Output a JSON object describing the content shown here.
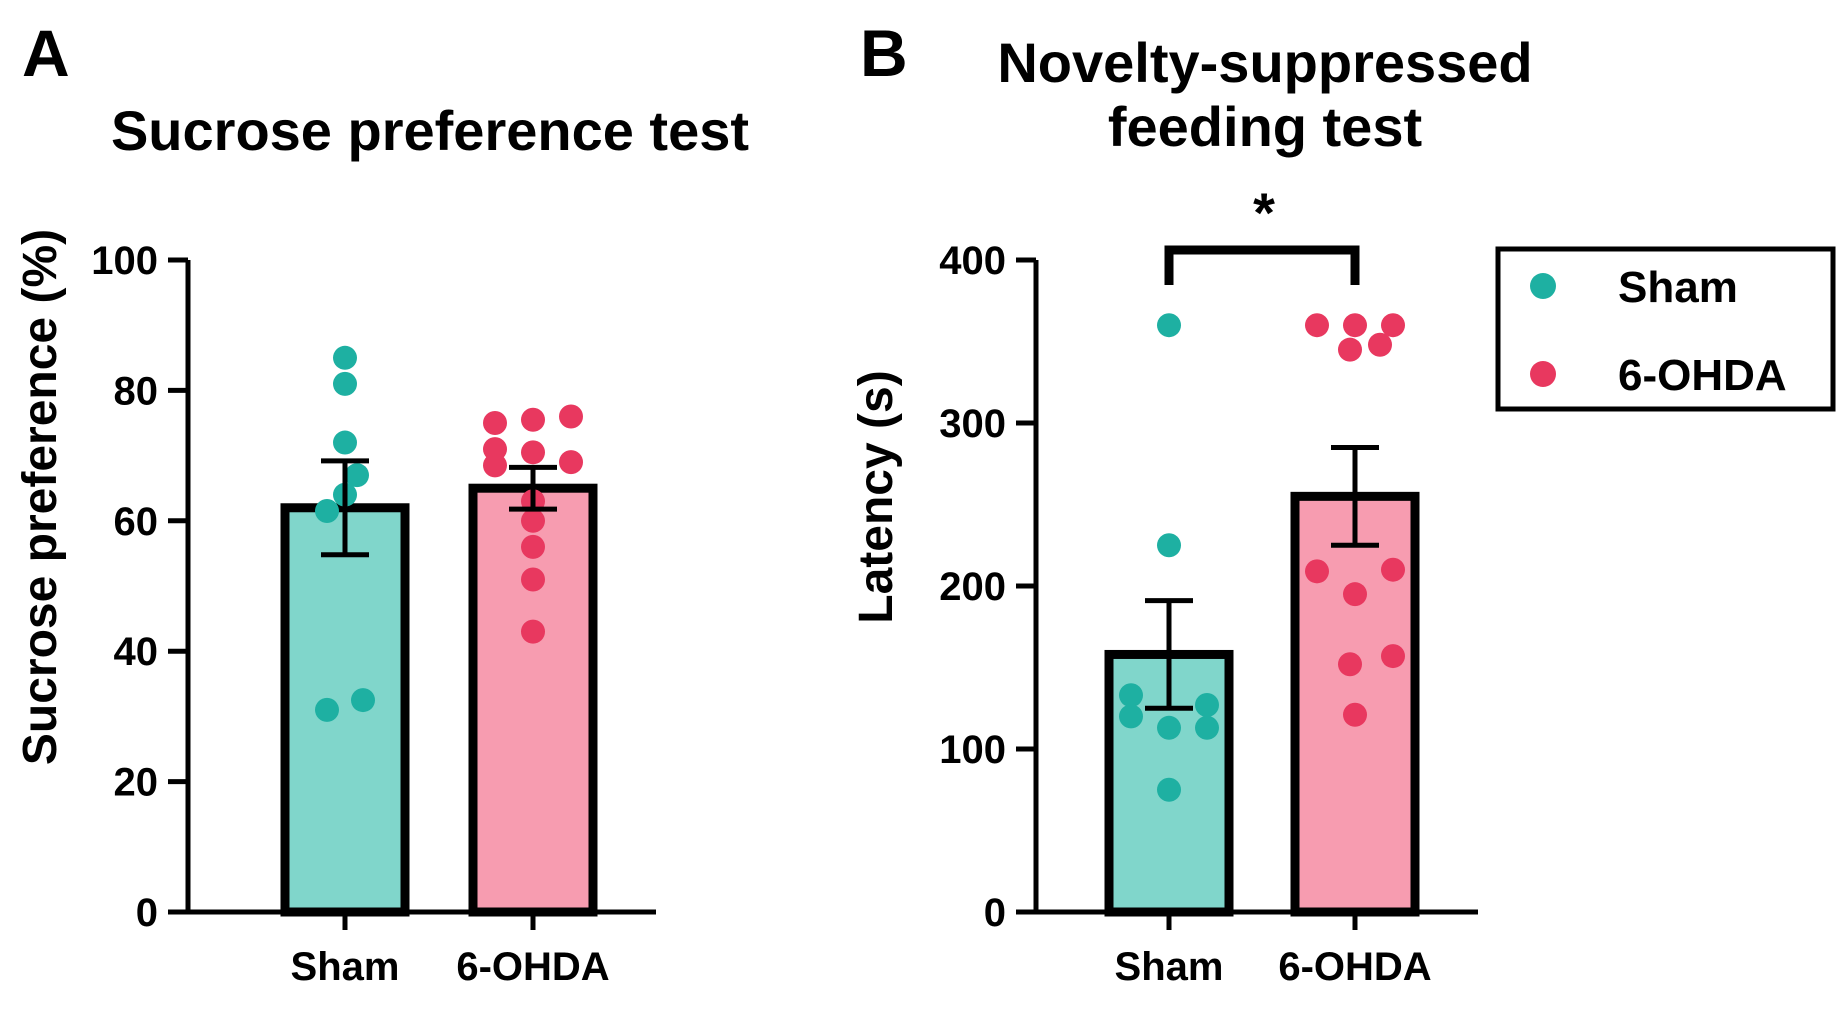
{
  "colors": {
    "sham_fill": "#80d6cb",
    "sham_dot": "#1eb0a2",
    "ohda_fill": "#f79cb0",
    "ohda_dot": "#e8385f",
    "ink": "#000000"
  },
  "panels": {
    "a": {
      "letter": "A"
    },
    "b": {
      "letter": "B"
    }
  },
  "legend": {
    "items": [
      {
        "label": "Sham",
        "color": "#1eb0a2"
      },
      {
        "label": "6-OHDA",
        "color": "#e8385f"
      }
    ]
  },
  "chart_data": [
    {
      "type": "bar",
      "title": "Sucrose preference test",
      "xlabel": "",
      "ylabel": "Sucrose preference (%)",
      "ylim": [
        0,
        100
      ],
      "yticks": [
        0,
        20,
        40,
        60,
        80,
        100
      ],
      "categories": [
        "Sham",
        "6-OHDA"
      ],
      "values": [
        62,
        65
      ],
      "sem": [
        7.2,
        3.2
      ],
      "points": [
        [
          85,
          81,
          72,
          67,
          64,
          61.5,
          31,
          32.5
        ],
        [
          75,
          75.5,
          76,
          71,
          70.5,
          69,
          68.5,
          63,
          60,
          56,
          51,
          43
        ]
      ],
      "significance": null
    },
    {
      "type": "bar",
      "title": "Novelty-suppressed feeding test",
      "title_lines": [
        "Novelty-suppressed",
        "feeding test"
      ],
      "xlabel": "",
      "ylabel": "Latency (s)",
      "ylim": [
        0,
        400
      ],
      "yticks": [
        0,
        100,
        200,
        300,
        400
      ],
      "categories": [
        "Sham",
        "6-OHDA"
      ],
      "values": [
        158,
        255
      ],
      "sem": [
        33,
        30
      ],
      "points": [
        [
          360,
          225,
          133,
          127,
          120,
          113,
          113,
          75
        ],
        [
          360,
          360,
          360,
          345,
          348,
          209,
          210,
          195,
          157,
          152,
          121
        ]
      ],
      "significance": "*"
    }
  ]
}
